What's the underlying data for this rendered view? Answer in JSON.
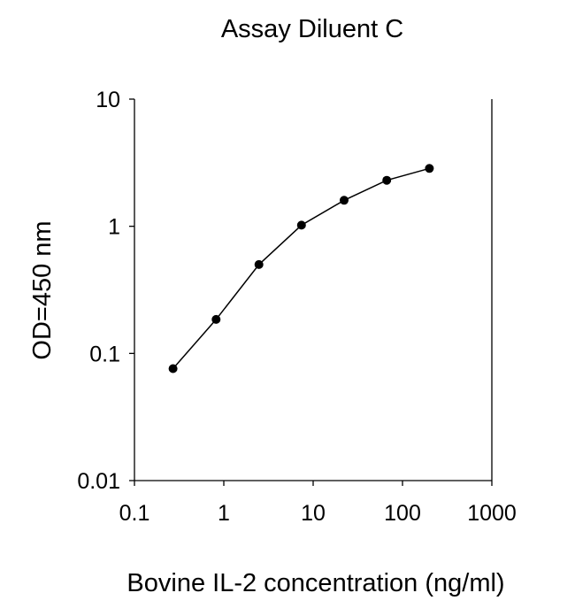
{
  "chart_data": {
    "type": "line",
    "title": "Assay Diluent C",
    "xlabel": "Bovine IL-2 concentration (ng/ml)",
    "ylabel": "OD=450 nm",
    "x_scale": "log",
    "y_scale": "log",
    "xlim": [
      0.1,
      1000
    ],
    "ylim": [
      0.01,
      10
    ],
    "x_ticks": [
      0.1,
      1,
      10,
      100,
      1000
    ],
    "x_tick_labels": [
      "0.1",
      "1",
      "10",
      "100",
      "1000"
    ],
    "y_ticks": [
      0.01,
      0.1,
      1,
      10
    ],
    "y_tick_labels": [
      "0.01",
      "0.1",
      "1",
      "10"
    ],
    "grid": false,
    "legend": "none",
    "series": [
      {
        "x": [
          0.27,
          0.82,
          2.47,
          7.4,
          22.2,
          66.7,
          200
        ],
        "y": [
          0.076,
          0.185,
          0.5,
          1.02,
          1.6,
          2.3,
          2.85
        ],
        "marker": "circle",
        "color": "#000000"
      }
    ]
  }
}
